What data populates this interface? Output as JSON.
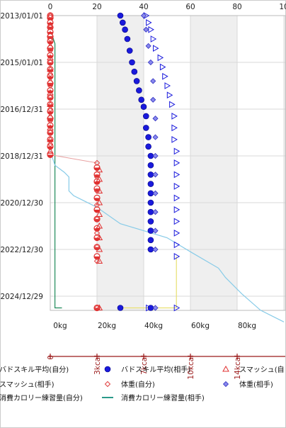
{
  "chart_data": {
    "type": "scatter",
    "orientation": "vertical-time",
    "x_axis_top": {
      "ticks": [
        "0",
        "20",
        "40",
        "60",
        "80",
        "10"
      ],
      "range": [
        0,
        100
      ]
    },
    "x_axis_weight": {
      "ticks": [
        "0kg",
        "20kg",
        "40kg",
        "60kg",
        "80kg"
      ],
      "range": [
        0,
        100
      ]
    },
    "x_axis_kcal": {
      "ticks": [
        "0",
        "3kcal",
        "7kcal",
        "10kcal",
        "14kcal"
      ]
    },
    "y_axis": {
      "ticks": [
        "2013/01/01",
        "2015/01/01",
        "2016/12/31",
        "2018/12/31",
        "2020/12/30",
        "2022/12/30",
        "2024/12/29"
      ]
    },
    "grid": true,
    "shaded_bands_x": [
      [
        20,
        40
      ],
      [
        60,
        80
      ]
    ],
    "colors": {
      "self_skill": "#e03030",
      "opp_skill": "#1a1adc",
      "self_weight": "#e04040",
      "opp_weight": "#3030c0",
      "self_calorie": "#1e8a5a",
      "opp_calorie": "#87cbe8",
      "opp_weight_line": "#e8e070",
      "weight_line": "#c8c8c8"
    },
    "series": [
      {
        "name": "バドスキル平均(自分)",
        "marker": "circle-half-red",
        "points": [
          [
            0,
            2013.0
          ],
          [
            0,
            2013.1
          ],
          [
            0,
            2013.3
          ],
          [
            0,
            2013.5
          ],
          [
            0,
            2013.7
          ],
          [
            0,
            2013.9
          ],
          [
            0,
            2014.1
          ],
          [
            0,
            2014.4
          ],
          [
            0,
            2014.7
          ],
          [
            0,
            2015.0
          ],
          [
            0,
            2015.3
          ],
          [
            0,
            2015.6
          ],
          [
            0,
            2015.9
          ],
          [
            0,
            2016.2
          ],
          [
            0,
            2016.5
          ],
          [
            0,
            2016.8
          ],
          [
            0,
            2017.1
          ],
          [
            0,
            2017.4
          ],
          [
            0,
            2017.7
          ],
          [
            0,
            2018.0
          ],
          [
            0,
            2018.3
          ],
          [
            0,
            2018.6
          ],
          [
            0,
            2018.95
          ],
          [
            20,
            2019.5
          ],
          [
            20,
            2019.8
          ],
          [
            20,
            2020.1
          ],
          [
            20,
            2020.4
          ],
          [
            20,
            2020.8
          ],
          [
            20,
            2021.3
          ],
          [
            20,
            2021.7
          ],
          [
            20,
            2022.1
          ],
          [
            20,
            2022.5
          ],
          [
            20,
            2022.9
          ],
          [
            20,
            2023.3
          ],
          [
            20,
            2025.5
          ]
        ]
      },
      {
        "name": "バドスキル平均(相手)",
        "marker": "circle-blue",
        "points": [
          [
            30,
            2013.0
          ],
          [
            31,
            2013.3
          ],
          [
            32,
            2013.6
          ],
          [
            33,
            2014.0
          ],
          [
            34,
            2014.5
          ],
          [
            35,
            2015.0
          ],
          [
            36,
            2015.4
          ],
          [
            37,
            2015.8
          ],
          [
            38,
            2016.2
          ],
          [
            39,
            2016.6
          ],
          [
            40,
            2016.9
          ],
          [
            41,
            2017.3
          ],
          [
            41,
            2017.8
          ],
          [
            42,
            2018.2
          ],
          [
            42,
            2018.6
          ],
          [
            43,
            2019.0
          ],
          [
            43,
            2019.4
          ],
          [
            43,
            2019.8
          ],
          [
            43,
            2020.2
          ],
          [
            43,
            2020.6
          ],
          [
            43,
            2021.0
          ],
          [
            43,
            2021.4
          ],
          [
            43,
            2021.8
          ],
          [
            43,
            2022.2
          ],
          [
            43,
            2022.6
          ],
          [
            43,
            2023.0
          ],
          [
            43,
            2025.5
          ],
          [
            30,
            2025.5
          ]
        ]
      },
      {
        "name": "スマッシュ(自分)",
        "marker": "triangle-red",
        "points": [
          [
            0,
            2013.0
          ],
          [
            0,
            2013.4
          ],
          [
            0,
            2013.8
          ],
          [
            0,
            2014.3
          ],
          [
            0,
            2014.8
          ],
          [
            0,
            2015.3
          ],
          [
            0,
            2015.8
          ],
          [
            0,
            2016.3
          ],
          [
            0,
            2016.8
          ],
          [
            0,
            2017.3
          ],
          [
            0,
            2017.8
          ],
          [
            0,
            2018.3
          ],
          [
            0,
            2018.8
          ],
          [
            21,
            2019.6
          ],
          [
            21,
            2020.0
          ],
          [
            21,
            2020.5
          ],
          [
            21,
            2021.0
          ],
          [
            21,
            2021.5
          ],
          [
            21,
            2022.0
          ],
          [
            21,
            2022.5
          ],
          [
            21,
            2023.0
          ],
          [
            21,
            2023.5
          ],
          [
            21,
            2025.5
          ]
        ]
      },
      {
        "name": "スマッシュ(相手)",
        "marker": "triangle-right-blue",
        "points": [
          [
            41,
            2013.0
          ],
          [
            42,
            2013.3
          ],
          [
            43,
            2013.6
          ],
          [
            44,
            2014.0
          ],
          [
            45,
            2014.4
          ],
          [
            47,
            2014.8
          ],
          [
            48,
            2015.2
          ],
          [
            49,
            2015.6
          ],
          [
            50,
            2016.0
          ],
          [
            51,
            2016.4
          ],
          [
            52,
            2016.8
          ],
          [
            53,
            2017.3
          ],
          [
            53,
            2017.8
          ],
          [
            53,
            2018.3
          ],
          [
            54,
            2018.8
          ],
          [
            54,
            2019.3
          ],
          [
            54,
            2019.8
          ],
          [
            54,
            2020.3
          ],
          [
            54,
            2020.8
          ],
          [
            54,
            2021.3
          ],
          [
            54,
            2021.8
          ],
          [
            54,
            2022.3
          ],
          [
            54,
            2022.8
          ],
          [
            54,
            2023.3
          ],
          [
            54,
            2025.5
          ],
          [
            42,
            2025.5
          ]
        ]
      },
      {
        "name": "体重(自分)",
        "marker": "diamond-red",
        "points": [
          [
            0,
            2013.0
          ],
          [
            0,
            2013.5
          ],
          [
            0,
            2014.0
          ],
          [
            0,
            2014.5
          ],
          [
            0,
            2015.0
          ],
          [
            0,
            2015.5
          ],
          [
            0,
            2016.0
          ],
          [
            0,
            2016.5
          ],
          [
            0,
            2017.0
          ],
          [
            0,
            2017.5
          ],
          [
            0,
            2018.0
          ],
          [
            0,
            2018.5
          ],
          [
            20,
            2019.3
          ],
          [
            20,
            2019.9
          ],
          [
            20,
            2020.5
          ],
          [
            20,
            2021.1
          ],
          [
            20,
            2021.7
          ],
          [
            20,
            2022.3
          ],
          [
            20,
            2022.9
          ],
          [
            20,
            2023.5
          ],
          [
            20,
            2025.5
          ]
        ]
      },
      {
        "name": "体重(相手)",
        "marker": "diamond-blue",
        "points": [
          [
            40,
            2013.0
          ],
          [
            41,
            2013.6
          ],
          [
            42,
            2014.3
          ],
          [
            43,
            2015.0
          ],
          [
            44,
            2015.8
          ],
          [
            44,
            2016.6
          ],
          [
            45,
            2017.4
          ],
          [
            45,
            2018.2
          ],
          [
            45,
            2019.0
          ],
          [
            45,
            2019.8
          ],
          [
            45,
            2020.6
          ],
          [
            45,
            2021.4
          ],
          [
            45,
            2022.2
          ],
          [
            45,
            2023.0
          ],
          [
            45,
            2025.5
          ]
        ]
      },
      {
        "name": "消費カロリー練習量(自分)",
        "marker": "line-green",
        "points": [
          [
            0,
            2013.0
          ],
          [
            1,
            2013.9
          ],
          [
            2,
            2014.2
          ],
          [
            2,
            2018.9
          ],
          [
            2,
            2025.5
          ],
          [
            5,
            2025.5
          ]
        ]
      },
      {
        "name": "消費カロリー練習量(相手)",
        "marker": "line-lightblue",
        "points": [
          [
            0,
            2018.8
          ],
          [
            2,
            2019.4
          ],
          [
            6,
            2019.7
          ],
          [
            8,
            2019.9
          ],
          [
            8,
            2020.5
          ],
          [
            10,
            2020.7
          ],
          [
            14,
            2020.9
          ],
          [
            20,
            2021.2
          ],
          [
            30,
            2021.9
          ],
          [
            40,
            2022.2
          ],
          [
            50,
            2022.5
          ],
          [
            60,
            2023.1
          ],
          [
            72,
            2023.8
          ],
          [
            75,
            2024.2
          ],
          [
            82,
            2024.9
          ],
          [
            90,
            2025.6
          ],
          [
            100,
            2026.1
          ]
        ]
      }
    ]
  },
  "legend": {
    "items": [
      {
        "label": "バドスキル平均(自分)",
        "marker": "circle-half-red"
      },
      {
        "label": "バドスキル平均(相手)",
        "marker": "circle-blue"
      },
      {
        "label": "スマッシュ(自",
        "marker": "triangle-red"
      },
      {
        "label": "スマッシュ(相手)",
        "marker": "triangle-right-blue"
      },
      {
        "label": "体重(自分)",
        "marker": "diamond-red"
      },
      {
        "label": "体重(相手)",
        "marker": "diamond-blue"
      },
      {
        "label": "消費カロリー練習量(自分)",
        "marker": "line-green"
      },
      {
        "label": "消費カロリー練習量(相手)",
        "marker": "line-teal"
      }
    ]
  }
}
